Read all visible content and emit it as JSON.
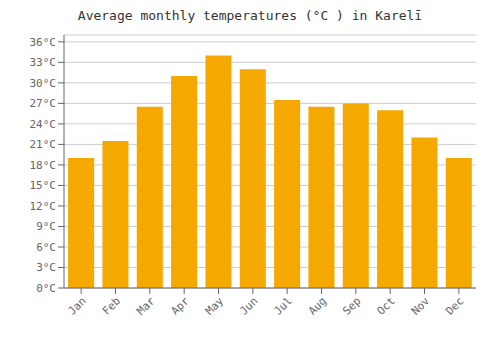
{
  "chart_data": {
    "type": "bar",
    "title": "Average monthly temperatures (°C ) in Karelī",
    "categories": [
      "Jan",
      "Feb",
      "Mar",
      "Apr",
      "May",
      "Jun",
      "Jul",
      "Aug",
      "Sep",
      "Oct",
      "Nov",
      "Dec"
    ],
    "values": [
      19.0,
      21.5,
      26.5,
      31.0,
      34.0,
      32.0,
      27.5,
      26.5,
      27.0,
      26.0,
      22.0,
      19.0
    ],
    "color": "#F5A800",
    "ylim": [
      0,
      37
    ],
    "yticks": [
      {
        "value": 0,
        "label": "0°C"
      },
      {
        "value": 3,
        "label": "3°C"
      },
      {
        "value": 6,
        "label": "6°C"
      },
      {
        "value": 9,
        "label": "9°C"
      },
      {
        "value": 12,
        "label": "12°C"
      },
      {
        "value": 15,
        "label": "15°C"
      },
      {
        "value": 18,
        "label": "18°C"
      },
      {
        "value": 21,
        "label": "21°C"
      },
      {
        "value": 24,
        "label": "24°C"
      },
      {
        "value": 27,
        "label": "27°C"
      },
      {
        "value": 30,
        "label": "30°C"
      },
      {
        "value": 33,
        "label": "33°C"
      },
      {
        "value": 36,
        "label": "36°C"
      }
    ],
    "grid": true
  }
}
